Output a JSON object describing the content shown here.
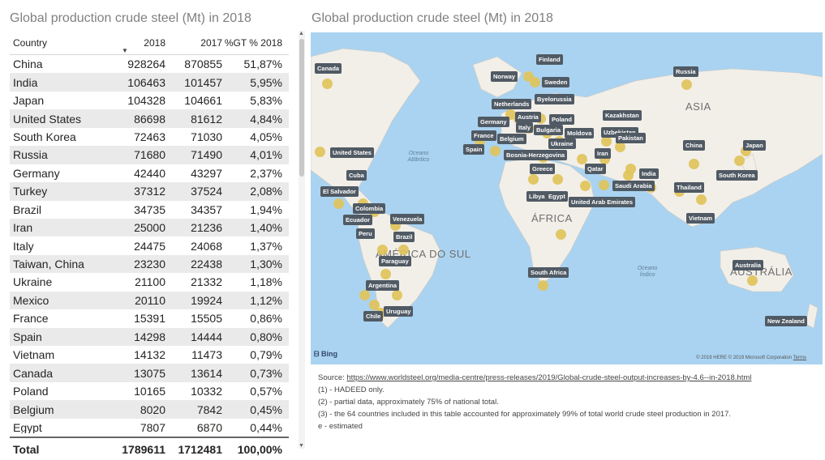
{
  "left_title": "Global production crude steel (Mt) in 2018",
  "right_title": "Global production crude steel (Mt) in 2018",
  "table": {
    "headers": [
      "Country",
      "2018",
      "2017",
      "%GT % 2018"
    ],
    "rows": [
      [
        "China",
        "928264",
        "870855",
        "51,87%"
      ],
      [
        "India",
        "106463",
        "101457",
        "5,95%"
      ],
      [
        "Japan",
        "104328",
        "104661",
        "5,83%"
      ],
      [
        "United States",
        "86698",
        "81612",
        "4,84%"
      ],
      [
        "South Korea",
        "72463",
        "71030",
        "4,05%"
      ],
      [
        "Russia",
        "71680",
        "71490",
        "4,01%"
      ],
      [
        "Germany",
        "42440",
        "43297",
        "2,37%"
      ],
      [
        "Turkey",
        "37312",
        "37524",
        "2,08%"
      ],
      [
        "Brazil",
        "34735",
        "34357",
        "1,94%"
      ],
      [
        "Iran",
        "25000",
        "21236",
        "1,40%"
      ],
      [
        "Italy",
        "24475",
        "24068",
        "1,37%"
      ],
      [
        "Taiwan, China",
        "23230",
        "22438",
        "1,30%"
      ],
      [
        "Ukraine",
        "21100",
        "21332",
        "1,18%"
      ],
      [
        "Mexico",
        "20110",
        "19924",
        "1,12%"
      ],
      [
        "France",
        "15391",
        "15505",
        "0,86%"
      ],
      [
        "Spain",
        "14298",
        "14444",
        "0,80%"
      ],
      [
        "Vietnam",
        "14132",
        "11473",
        "0,79%"
      ],
      [
        "Canada",
        "13075",
        "13614",
        "0,73%"
      ],
      [
        "Poland",
        "10165",
        "10332",
        "0,57%"
      ],
      [
        "Belgium",
        "8020",
        "7842",
        "0,45%"
      ],
      [
        "Egypt",
        "7807",
        "6870",
        "0,44%"
      ]
    ],
    "total": [
      "Total",
      "1789611",
      "1712481",
      "100,00%"
    ]
  },
  "map": {
    "regions": [
      "ASIA",
      "ÁFRICA",
      "AMÉRICA DO SUL",
      "AUSTRÁLIA"
    ],
    "oceans": [
      "Oceano Atlântico",
      "Oceano Índico"
    ],
    "labels": [
      "Canada",
      "United States",
      "Cuba",
      "El Salvador",
      "Colombia",
      "Ecuador",
      "Venezuela",
      "Peru",
      "Brazil",
      "Paraguay",
      "Argentina",
      "Chile",
      "Uruguay",
      "Norway",
      "Finland",
      "Sweden",
      "Russia",
      "Byelorussia",
      "Netherlands",
      "Germany",
      "Austria",
      "Poland",
      "Italy",
      "Bulgaria",
      "Moldova",
      "Kazakhstan",
      "Uzbekistan",
      "France",
      "Belgium",
      "Ukraine",
      "Spain",
      "Bosnia-Herzegovina",
      "Iran",
      "Pakistan",
      "China",
      "Japan",
      "Greece",
      "Qatar",
      "Saudi Arabia",
      "India",
      "South Korea",
      "Libya",
      "Egypt",
      "United Arab Emirates",
      "Thailand",
      "Vietnam",
      "South Africa",
      "Australia",
      "New Zealand"
    ],
    "bing": "Bing",
    "copyright": "© 2019 HERE © 2019 Microsoft Corporation",
    "terms": "Terms"
  },
  "notes": {
    "source_prefix": "Source: ",
    "source_link": "https://www.worldsteel.org/media-centre/press-releases/2019/Global-crude-steel-output-increases-by-4.6--in-2018.html",
    "n1": "(1) - HADEED only.",
    "n2": "(2) - partial data, approximately 75% of national total.",
    "n3": "(3) - the 64 countries included in this table accounted for approximately 99% of total world crude steel production in 2017.",
    "n4": "e - estimated"
  }
}
